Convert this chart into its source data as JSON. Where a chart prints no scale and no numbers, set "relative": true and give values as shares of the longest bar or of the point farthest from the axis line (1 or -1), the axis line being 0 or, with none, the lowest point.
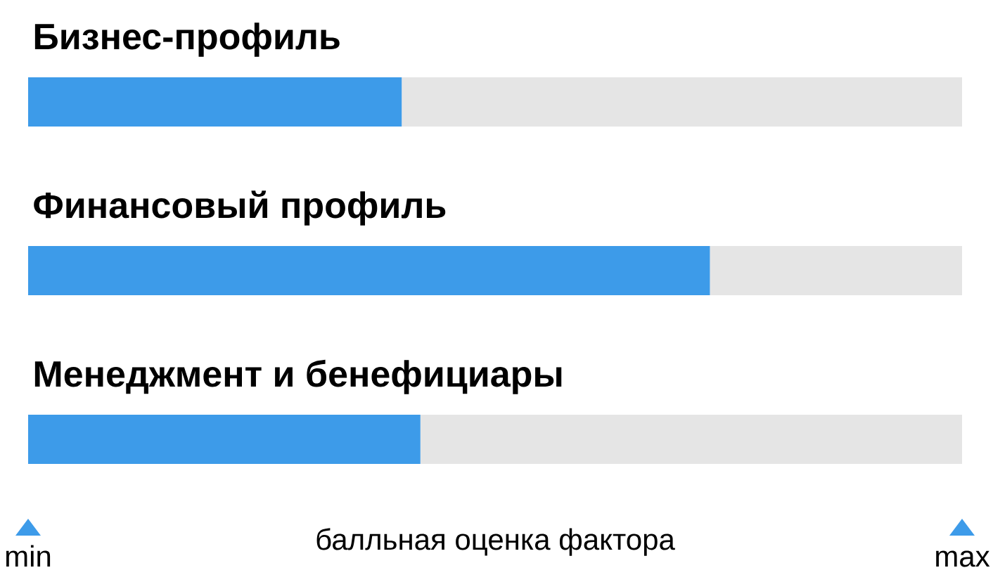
{
  "chart_data": {
    "type": "bar",
    "orientation": "horizontal",
    "stacked": true,
    "relative": true,
    "categories": [
      "Бизнес-профиль",
      "Финансовый профиль",
      "Менеджмент и бенефициары"
    ],
    "series": [
      {
        "color": "#3d9be9",
        "values": [
          0.4,
          0.73,
          0.42
        ]
      },
      {
        "color": "#e5e5e5",
        "values": [
          0.6,
          0.27,
          0.58
        ]
      }
    ],
    "xlabel": "балльная оценка фактора",
    "annotations": [
      "min",
      "max"
    ]
  }
}
